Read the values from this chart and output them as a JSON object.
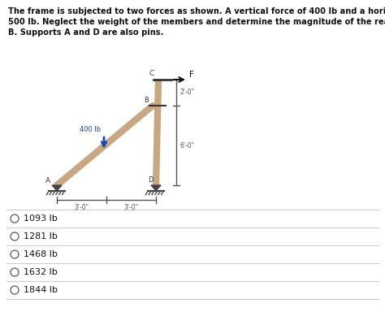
{
  "title_line1": "The frame is subjected to two forces as shown. A vertical force of 400 lb and a horizontal force of F =",
  "title_line2": "500 lb. Neglect the weight of the members and determine the magnitude of the reaction force at pin",
  "title_line3": "B. Supports A and D are also pins.",
  "choices": [
    "1093 lb",
    "1281 lb",
    "1468 lb",
    "1632 lb",
    "1844 lb"
  ],
  "frame_color": "#c8a882",
  "force_color": "#1a44bb",
  "background": "#ffffff",
  "text_color": "#111111",
  "dim_color": "#555555",
  "label_400": "400 lb",
  "dim_2ft": "2'-0\"",
  "dim_6ft": "6'-0\"",
  "dim_3ft_left": "3'-0\"",
  "dim_3ft_right": "3'-0\"",
  "fig_width": 4.74,
  "fig_height": 3.84
}
